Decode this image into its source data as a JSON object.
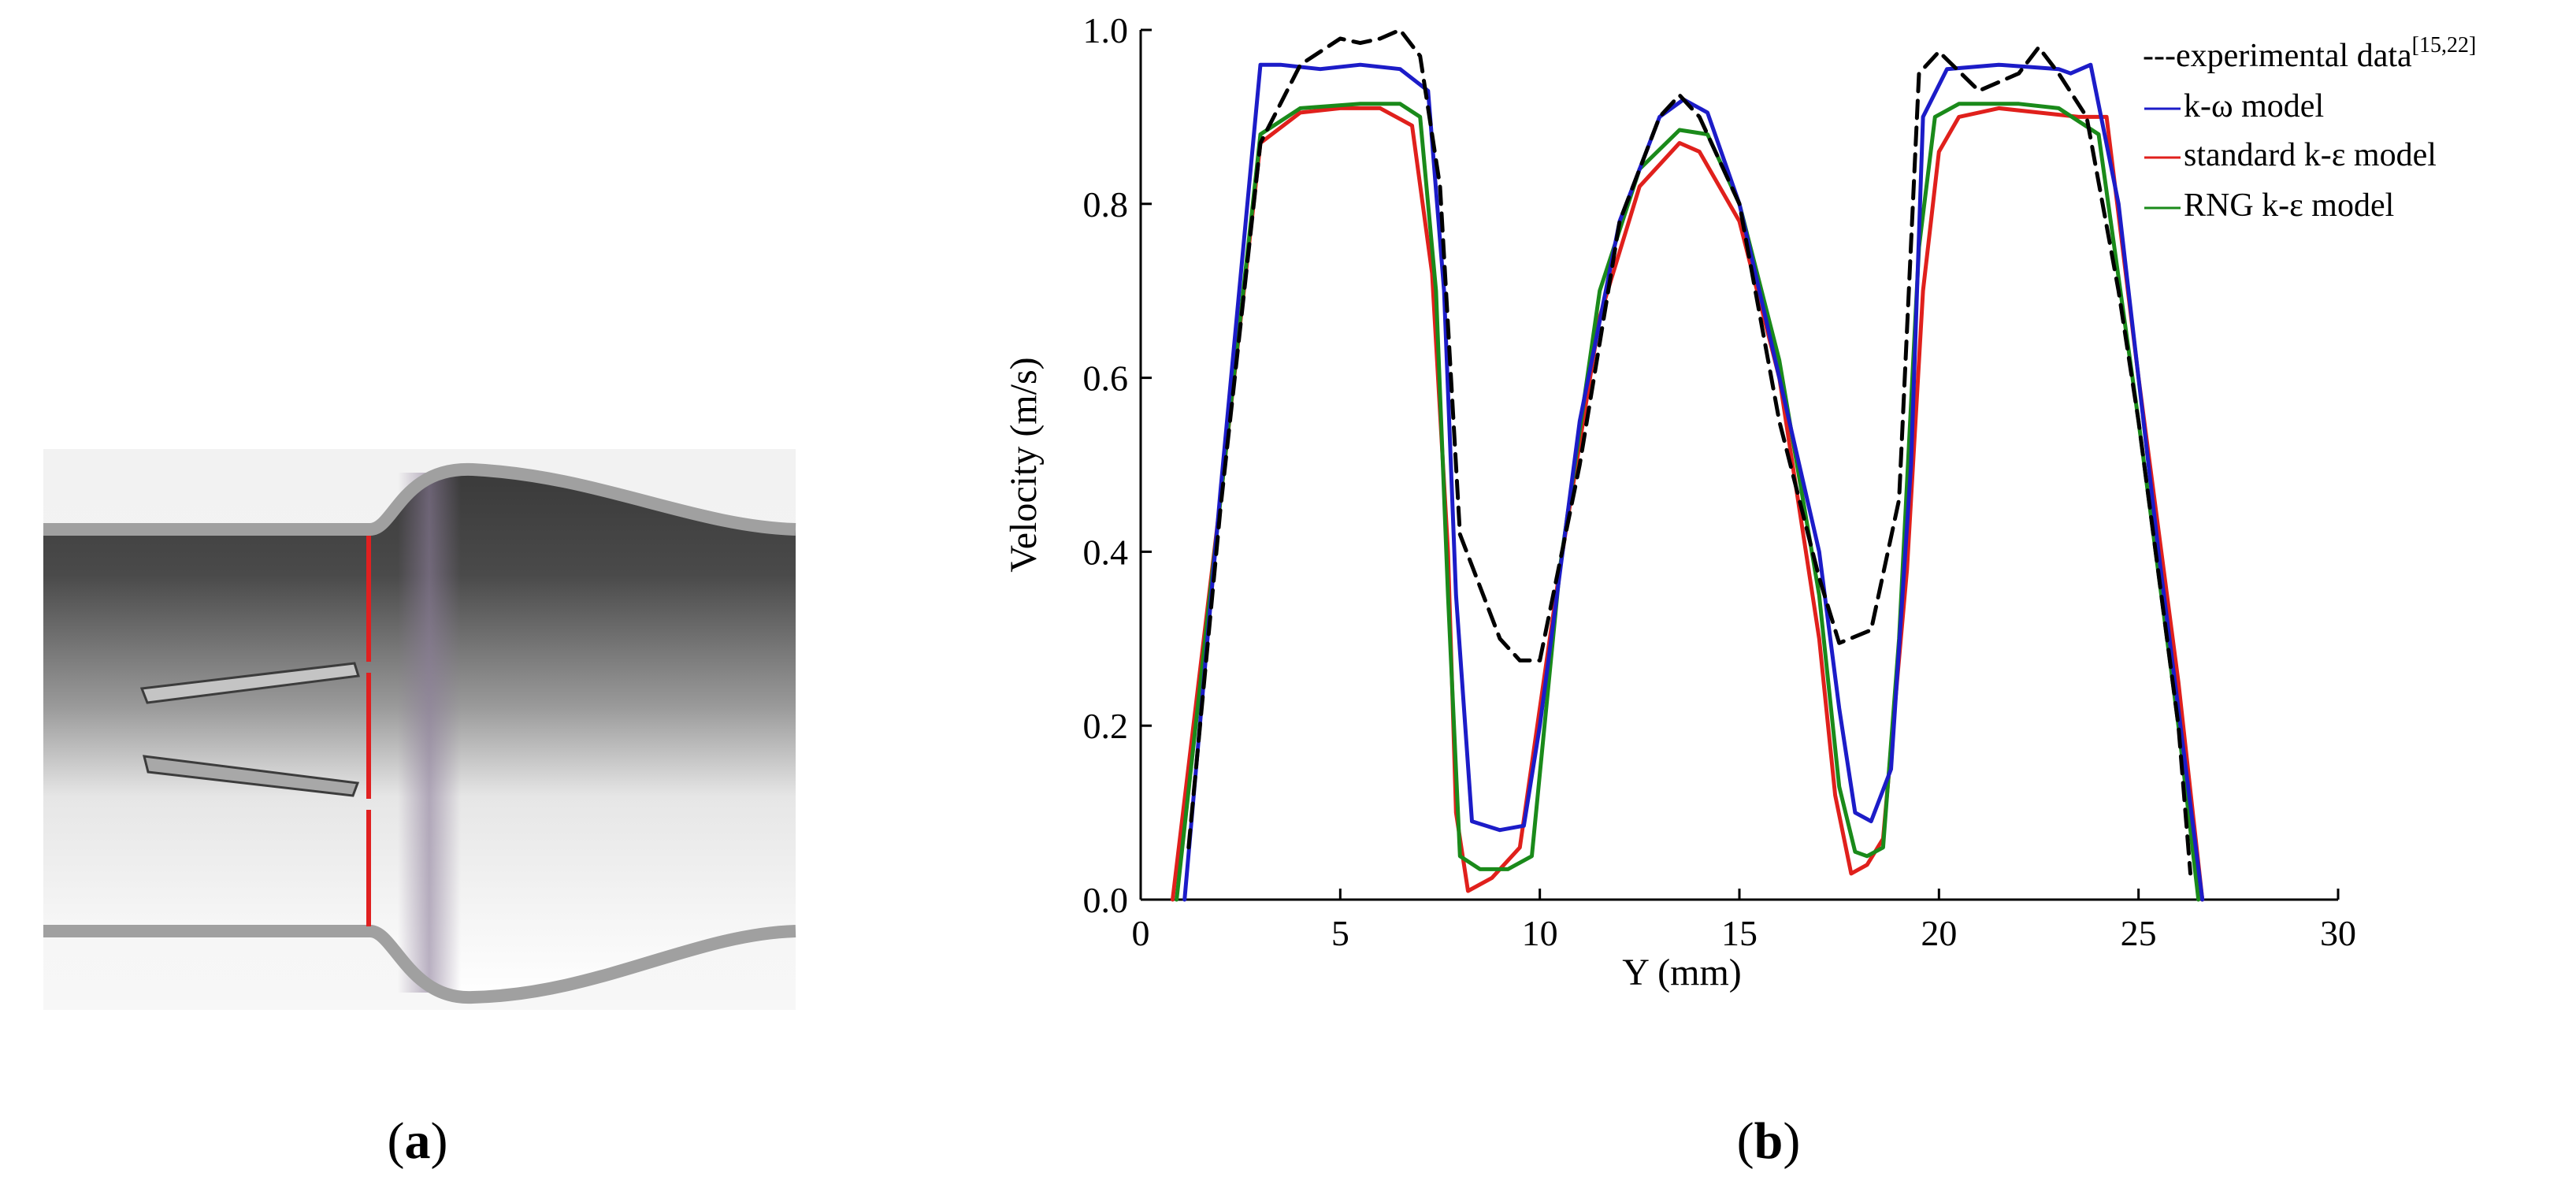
{
  "panels": {
    "a": {
      "label_open": "(",
      "label_letter": "a",
      "label_close": ")"
    },
    "b": {
      "label_open": "(",
      "label_letter": "b",
      "label_close": ")"
    }
  },
  "colors": {
    "experimental": "#000000",
    "k_omega": "#1c1cc8",
    "standard_k_eps": "#e0201c",
    "rng_k_eps": "#1a8a1a",
    "measurement_line": "#e02020",
    "pipe_wall": "#a0a0a0"
  },
  "chart_data": {
    "type": "line",
    "title": "",
    "xlabel": "Y (mm)",
    "ylabel": "Velocity (m/s)",
    "xlim": [
      0,
      30
    ],
    "ylim": [
      0,
      1.0
    ],
    "xticks": [
      0,
      5,
      10,
      15,
      20,
      25,
      30
    ],
    "yticks": [
      0.0,
      0.2,
      0.4,
      0.6,
      0.8,
      1.0
    ],
    "xtick_labels": [
      "0",
      "5",
      "10",
      "15",
      "20",
      "25",
      "30"
    ],
    "ytick_labels": [
      "0.0",
      "0.2",
      "0.4",
      "0.6",
      "0.8",
      "1.0"
    ],
    "legend_position": "top-right",
    "series": [
      {
        "name": "experimental data",
        "legend_label": "---experimental data",
        "legend_superscript": "[15,22]",
        "style": "dashed",
        "color": "#000000",
        "x": [
          1.2,
          2.0,
          3.0,
          4.0,
          5.0,
          5.5,
          6.0,
          6.5,
          7.0,
          7.5,
          8.0,
          9.0,
          9.5,
          10.0,
          11.0,
          12.0,
          13.0,
          13.5,
          14.0,
          15.0,
          16.0,
          17.0,
          17.5,
          18.3,
          19.0,
          19.5,
          20.0,
          21.0,
          22.0,
          22.5,
          23.0,
          23.7,
          24.5,
          25.0,
          26.0,
          26.3
        ],
        "y": [
          0.06,
          0.45,
          0.87,
          0.96,
          0.99,
          0.985,
          0.99,
          1.0,
          0.97,
          0.82,
          0.42,
          0.3,
          0.275,
          0.275,
          0.5,
          0.78,
          0.9,
          0.925,
          0.9,
          0.8,
          0.55,
          0.37,
          0.295,
          0.31,
          0.46,
          0.95,
          0.975,
          0.93,
          0.95,
          0.98,
          0.95,
          0.9,
          0.7,
          0.55,
          0.2,
          0.03
        ]
      },
      {
        "name": "k-ω model",
        "legend_label": "k-ω model",
        "style": "solid",
        "color": "#1c1cc8",
        "x": [
          1.1,
          2.0,
          3.0,
          3.5,
          4.5,
          5.5,
          6.5,
          7.2,
          7.6,
          7.9,
          8.3,
          9.0,
          9.6,
          10.0,
          11.0,
          12.0,
          13.0,
          13.6,
          14.2,
          15.0,
          16.0,
          17.0,
          17.5,
          17.9,
          18.3,
          18.8,
          19.3,
          19.6,
          20.2,
          21.5,
          23.0,
          23.3,
          23.8,
          24.5,
          25.5,
          26.6
        ],
        "y": [
          0.0,
          0.47,
          0.96,
          0.96,
          0.955,
          0.96,
          0.955,
          0.93,
          0.7,
          0.35,
          0.09,
          0.08,
          0.085,
          0.2,
          0.55,
          0.78,
          0.9,
          0.92,
          0.905,
          0.8,
          0.6,
          0.4,
          0.22,
          0.1,
          0.09,
          0.15,
          0.5,
          0.9,
          0.955,
          0.96,
          0.955,
          0.95,
          0.96,
          0.8,
          0.4,
          0.0
        ]
      },
      {
        "name": "standard k-ε model",
        "legend_label": "standard k-ε model",
        "style": "solid",
        "color": "#e0201c",
        "x": [
          0.8,
          2.0,
          3.0,
          4.0,
          5.0,
          6.0,
          6.8,
          7.3,
          7.7,
          7.9,
          8.2,
          8.8,
          9.5,
          10.5,
          11.5,
          12.5,
          13.5,
          14.0,
          15.0,
          16.0,
          17.0,
          17.4,
          17.8,
          18.2,
          18.6,
          19.2,
          19.6,
          20.0,
          20.5,
          21.5,
          22.5,
          23.5,
          24.2,
          25.0,
          26.0,
          26.6
        ],
        "y": [
          0.0,
          0.46,
          0.87,
          0.905,
          0.91,
          0.91,
          0.89,
          0.72,
          0.4,
          0.1,
          0.01,
          0.025,
          0.06,
          0.38,
          0.67,
          0.82,
          0.87,
          0.86,
          0.78,
          0.6,
          0.3,
          0.12,
          0.03,
          0.04,
          0.07,
          0.38,
          0.7,
          0.86,
          0.9,
          0.91,
          0.905,
          0.9,
          0.9,
          0.6,
          0.25,
          0.0
        ]
      },
      {
        "name": "RNG k-ε model",
        "legend_label": "RNG k-ε model",
        "style": "solid",
        "color": "#1a8a1a",
        "x": [
          0.9,
          2.0,
          3.0,
          4.0,
          5.5,
          6.5,
          7.0,
          7.4,
          7.7,
          8.0,
          8.5,
          9.2,
          9.8,
          10.5,
          11.5,
          12.5,
          13.5,
          14.2,
          15.0,
          16.0,
          17.0,
          17.5,
          17.9,
          18.2,
          18.6,
          19.0,
          19.5,
          19.9,
          20.5,
          22.0,
          23.0,
          24.0,
          25.0,
          26.0,
          26.5
        ],
        "y": [
          0.0,
          0.46,
          0.88,
          0.91,
          0.915,
          0.915,
          0.9,
          0.7,
          0.35,
          0.05,
          0.035,
          0.035,
          0.05,
          0.38,
          0.7,
          0.84,
          0.885,
          0.88,
          0.8,
          0.62,
          0.35,
          0.13,
          0.055,
          0.05,
          0.06,
          0.3,
          0.75,
          0.9,
          0.915,
          0.915,
          0.91,
          0.88,
          0.55,
          0.2,
          0.0
        ]
      }
    ]
  }
}
